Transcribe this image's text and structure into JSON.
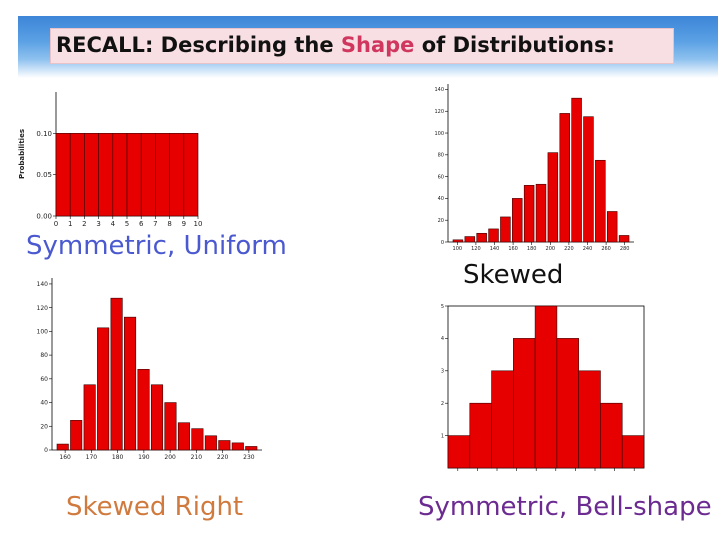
{
  "header": {
    "title_a": "RECALL: Describing the ",
    "title_hl": "Shape",
    "title_b": " of Distributions:"
  },
  "captions": {
    "uniform": "Symmetric, Uniform",
    "skewed": "Skewed",
    "right": "Skewed Right",
    "bell": "Symmetric, Bell-shape"
  },
  "colors": {
    "bar": "#e60000",
    "caption_uniform": "#4a59d0",
    "caption_right": "#d07a3e",
    "caption_bell": "#6b2b90",
    "title_highlight": "#d0365e"
  },
  "chart_data": [
    {
      "type": "bar",
      "ylabel": "Probabilities",
      "x_ticks": [
        "0",
        "1",
        "2",
        "3",
        "4",
        "5",
        "6",
        "7",
        "8",
        "9",
        "10"
      ],
      "y_ticks": [
        "0.00",
        "0.05",
        "0.10"
      ],
      "ylim": [
        0,
        0.15
      ],
      "bins": [
        [
          0,
          1
        ],
        [
          1,
          2
        ],
        [
          2,
          3
        ],
        [
          3,
          4
        ],
        [
          4,
          5
        ],
        [
          5,
          6
        ],
        [
          6,
          7
        ],
        [
          7,
          8
        ],
        [
          8,
          9
        ],
        [
          9,
          10
        ]
      ],
      "values": [
        0.1,
        0.1,
        0.1,
        0.1,
        0.1,
        0.1,
        0.1,
        0.1,
        0.1,
        0.1
      ]
    },
    {
      "type": "bar",
      "x_ticks": [
        "100",
        "120",
        "140",
        "160",
        "180",
        "200",
        "220",
        "240",
        "260",
        "280"
      ],
      "y_ticks": [
        "0",
        "20",
        "40",
        "60",
        "80",
        "100",
        "120",
        "140"
      ],
      "ylim": [
        0,
        145
      ],
      "values": [
        2,
        5,
        8,
        12,
        23,
        40,
        52,
        53,
        82,
        118,
        132,
        115,
        75,
        28,
        6
      ]
    },
    {
      "type": "bar",
      "x_ticks": [
        "160",
        "170",
        "180",
        "190",
        "200",
        "210",
        "220",
        "230"
      ],
      "y_ticks": [
        "0",
        "20",
        "40",
        "60",
        "80",
        "100",
        "120",
        "140"
      ],
      "ylim": [
        0,
        145
      ],
      "values": [
        5,
        25,
        55,
        103,
        128,
        112,
        68,
        55,
        40,
        23,
        18,
        12,
        8,
        6,
        3
      ]
    },
    {
      "type": "bar",
      "x_ticks": [
        "",
        "",
        "",
        "",
        "",
        "",
        "",
        "",
        "",
        ""
      ],
      "y_ticks": [
        "1",
        "2",
        "3",
        "4",
        "5"
      ],
      "ylim": [
        0,
        5
      ],
      "values": [
        1,
        2,
        3,
        4,
        5,
        4,
        3,
        2,
        1
      ]
    }
  ]
}
